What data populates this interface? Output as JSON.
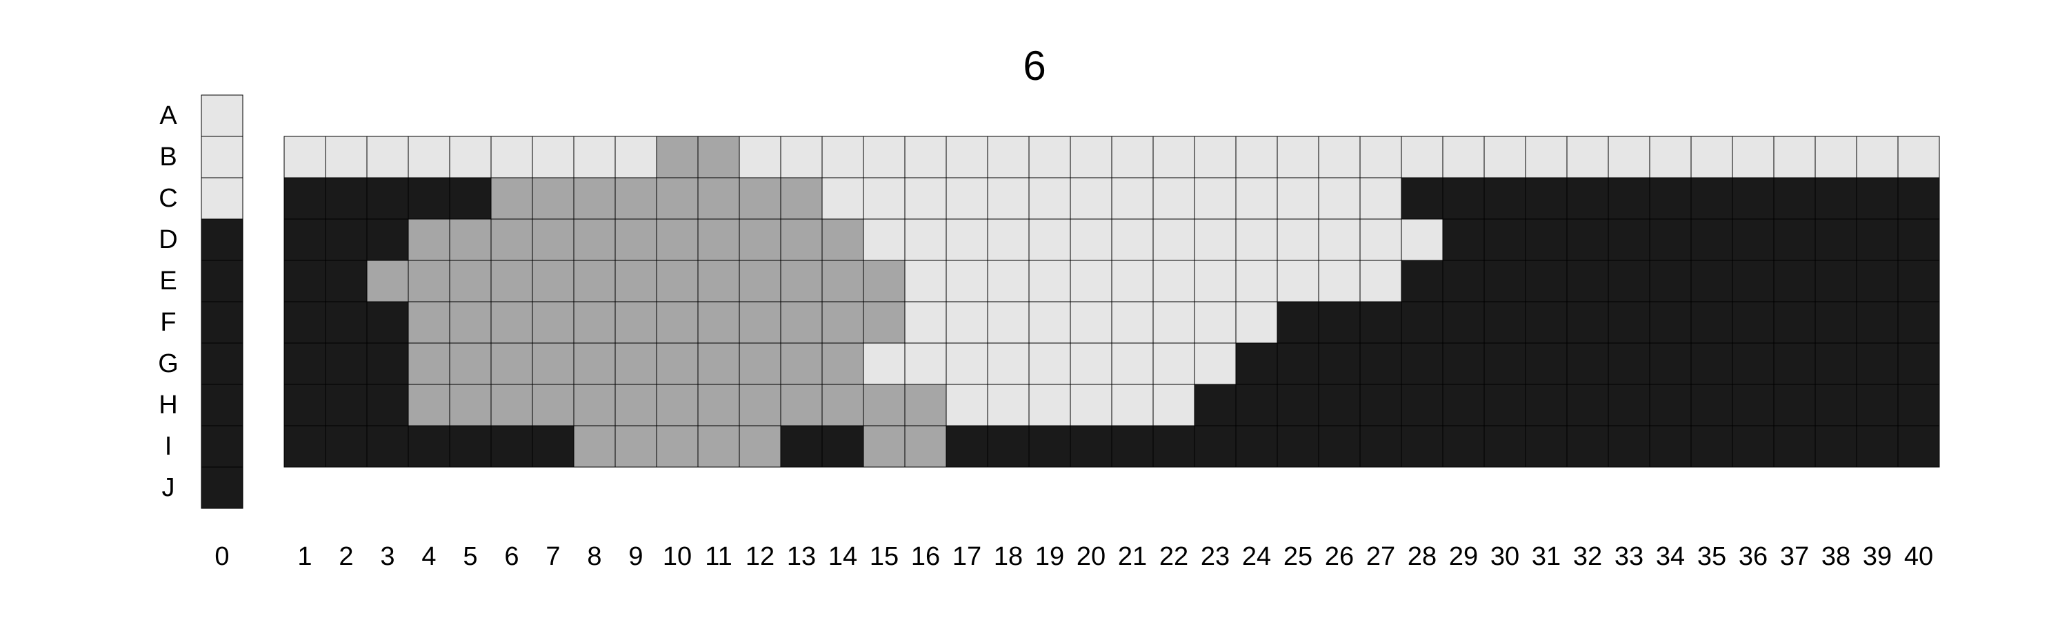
{
  "chart_data": {
    "type": "heatmap",
    "title": "6",
    "rows": [
      "A",
      "B",
      "C",
      "D",
      "E",
      "F",
      "G",
      "H",
      "I",
      "J"
    ],
    "reference_column": {
      "label": "0",
      "values": [
        "L",
        "L",
        "L",
        "D",
        "D",
        "D",
        "D",
        "D",
        "D",
        "D"
      ]
    },
    "columns": [
      "1",
      "2",
      "3",
      "4",
      "5",
      "6",
      "7",
      "8",
      "9",
      "10",
      "11",
      "12",
      "13",
      "14",
      "15",
      "16",
      "17",
      "18",
      "19",
      "20",
      "21",
      "22",
      "23",
      "24",
      "25",
      "26",
      "27",
      "28",
      "29",
      "30",
      "31",
      "32",
      "33",
      "34",
      "35",
      "36",
      "37",
      "38",
      "39",
      "40"
    ],
    "grid_rows": [
      "B",
      "C",
      "D",
      "E",
      "F",
      "G",
      "H",
      "I"
    ],
    "grid": [
      "LLLLLLLLLMMLLLLLLLLLLLLLLLLLLLLLLLLLLLLL",
      "DDDDDMMMMMMMMLLLLLLLLLLLLLLDDDDDDDDDDDDD",
      "DDDMMMMMMMMMMMLLLLLLLLLLLLLLDDDDDDDDDDDD",
      "DDMMMMMMMMMMMMMLLLLLLLLLLLLDDDDDDDDDDDDD",
      "DDDMMMMMMMMMMMMLLLLLLLLLDDDDDDDDDDDDDDDD",
      "DDDMMMMMMMMMMMLLLLLLLLLDDDDDDDDDDDDDDDDD",
      "DDDMMMMMMMMMMMMMLLLLLLDDDDDDDDDDDDDDDDDD",
      "DDDDDDDMMMMMDDMMDDDDDDDDDDDDDDDDDDDDDDDD"
    ],
    "legend_codes": {
      "L": "light",
      "M": "medium",
      "D": "dark"
    },
    "colors": {
      "L": "#e6e6e6",
      "M": "#a6a6a6",
      "D": "#1a1a1a",
      "border": "#000000"
    }
  }
}
